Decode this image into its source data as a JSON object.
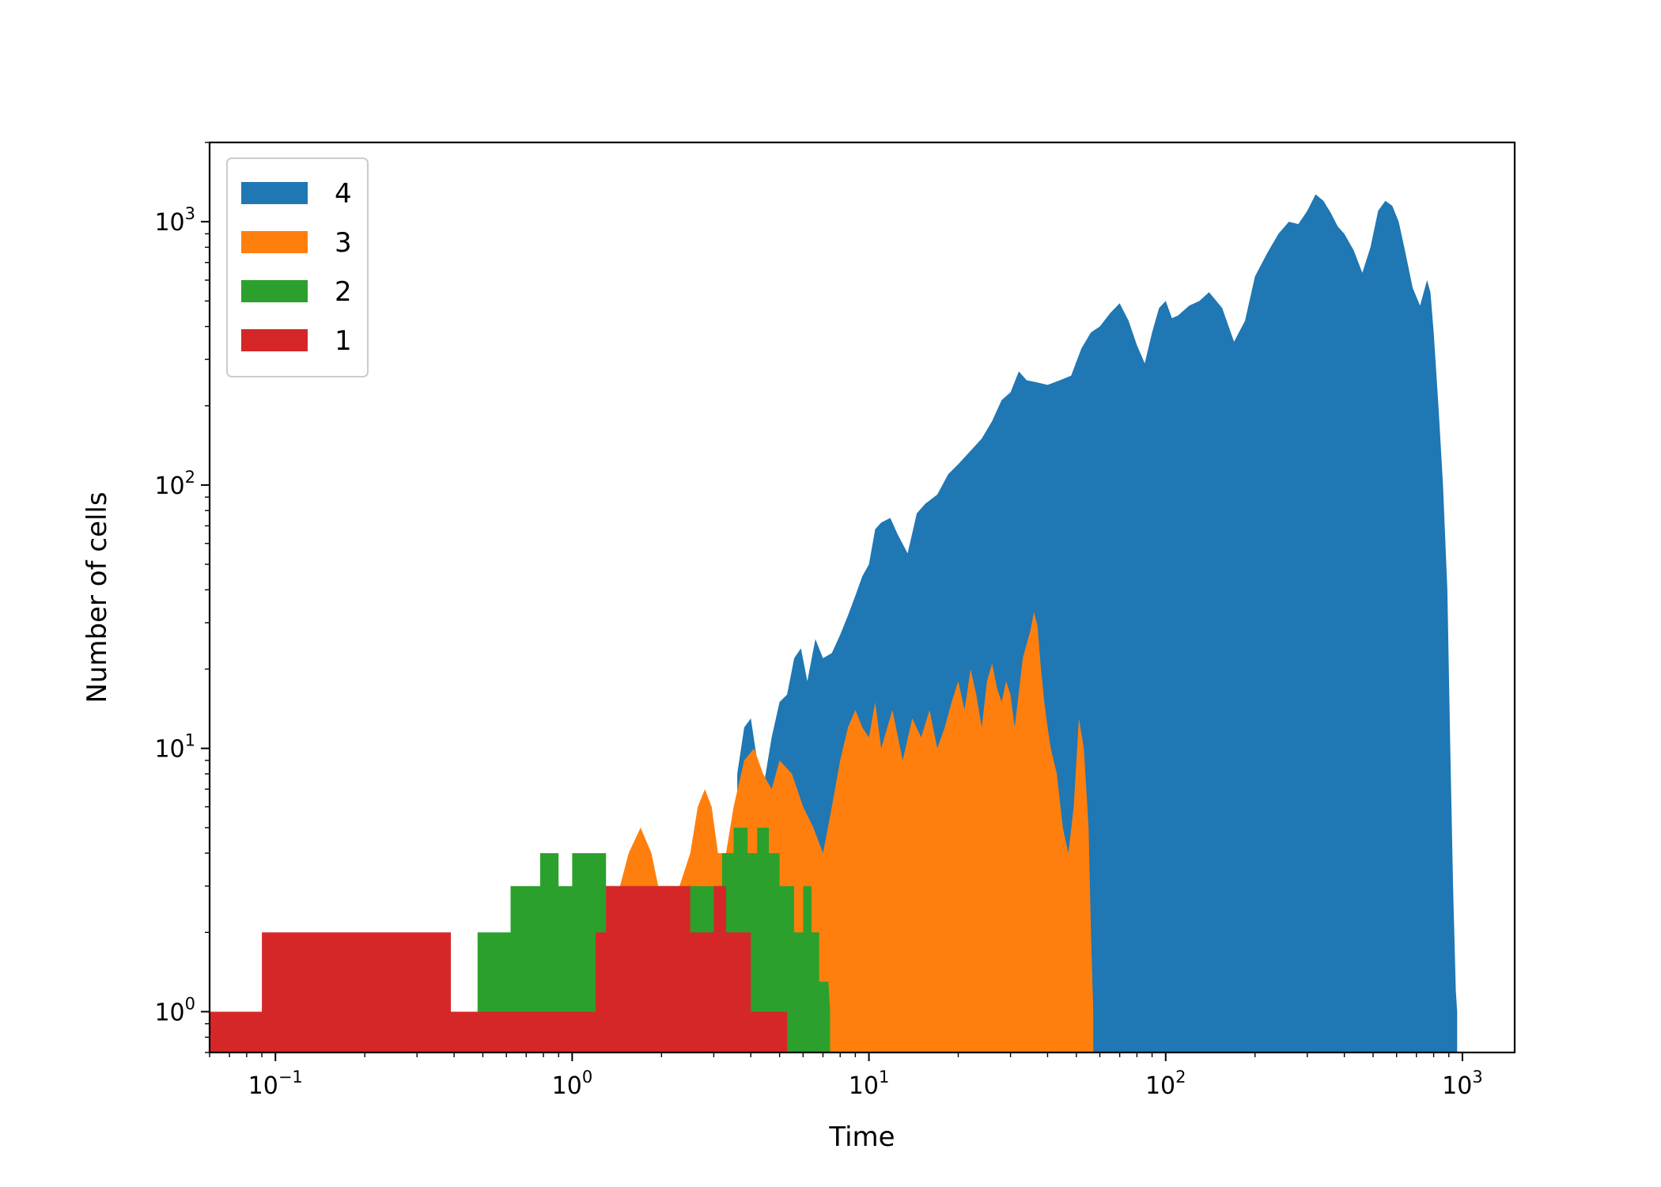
{
  "chart_data": {
    "type": "area",
    "xlabel": "Time",
    "ylabel": "Number of cells",
    "xscale": "log",
    "yscale": "log",
    "xlim": [
      0.06,
      1500
    ],
    "ylim": [
      0.7,
      2000
    ],
    "x_ticks": [
      {
        "value": 0.1,
        "base": "10",
        "exp": "−1"
      },
      {
        "value": 1,
        "base": "10",
        "exp": "0"
      },
      {
        "value": 10,
        "base": "10",
        "exp": "1"
      },
      {
        "value": 100,
        "base": "10",
        "exp": "2"
      },
      {
        "value": 1000,
        "base": "10",
        "exp": "3"
      }
    ],
    "y_ticks": [
      {
        "value": 1,
        "base": "10",
        "exp": "0"
      },
      {
        "value": 10,
        "base": "10",
        "exp": "1"
      },
      {
        "value": 100,
        "base": "10",
        "exp": "2"
      },
      {
        "value": 1000,
        "base": "10",
        "exp": "3"
      }
    ],
    "grid": false,
    "legend": {
      "position": "top-left",
      "entries": [
        "4",
        "3",
        "2",
        "1"
      ]
    },
    "series": [
      {
        "name": "4",
        "color": "#1f77b4",
        "points": [
          [
            3.6,
            1
          ],
          [
            3.6,
            8
          ],
          [
            3.8,
            12
          ],
          [
            4.0,
            13
          ],
          [
            4.2,
            9
          ],
          [
            4.4,
            7
          ],
          [
            4.7,
            11
          ],
          [
            5.0,
            15
          ],
          [
            5.3,
            16
          ],
          [
            5.6,
            22
          ],
          [
            5.9,
            24
          ],
          [
            6.2,
            18
          ],
          [
            6.6,
            26
          ],
          [
            7.0,
            22
          ],
          [
            7.5,
            23
          ],
          [
            8.0,
            27
          ],
          [
            8.5,
            32
          ],
          [
            9.0,
            38
          ],
          [
            9.5,
            45
          ],
          [
            10,
            50
          ],
          [
            10.5,
            68
          ],
          [
            11,
            72
          ],
          [
            11.8,
            75
          ],
          [
            12.5,
            65
          ],
          [
            13.5,
            55
          ],
          [
            14.5,
            78
          ],
          [
            15.5,
            85
          ],
          [
            17,
            92
          ],
          [
            18.5,
            110
          ],
          [
            20,
            120
          ],
          [
            22,
            135
          ],
          [
            24,
            150
          ],
          [
            26,
            175
          ],
          [
            28,
            210
          ],
          [
            30,
            225
          ],
          [
            32,
            270
          ],
          [
            34,
            250
          ],
          [
            37,
            245
          ],
          [
            40,
            240
          ],
          [
            44,
            250
          ],
          [
            48,
            260
          ],
          [
            52,
            330
          ],
          [
            56,
            380
          ],
          [
            60,
            400
          ],
          [
            65,
            450
          ],
          [
            70,
            490
          ],
          [
            75,
            420
          ],
          [
            80,
            340
          ],
          [
            85,
            290
          ],
          [
            90,
            380
          ],
          [
            95,
            470
          ],
          [
            100,
            500
          ],
          [
            105,
            430
          ],
          [
            110,
            440
          ],
          [
            120,
            480
          ],
          [
            130,
            500
          ],
          [
            140,
            540
          ],
          [
            155,
            470
          ],
          [
            170,
            350
          ],
          [
            185,
            420
          ],
          [
            200,
            620
          ],
          [
            220,
            760
          ],
          [
            240,
            900
          ],
          [
            260,
            1000
          ],
          [
            280,
            980
          ],
          [
            300,
            1100
          ],
          [
            320,
            1270
          ],
          [
            340,
            1200
          ],
          [
            360,
            1080
          ],
          [
            380,
            960
          ],
          [
            400,
            900
          ],
          [
            430,
            780
          ],
          [
            460,
            640
          ],
          [
            490,
            800
          ],
          [
            520,
            1100
          ],
          [
            550,
            1200
          ],
          [
            580,
            1150
          ],
          [
            610,
            1000
          ],
          [
            640,
            780
          ],
          [
            680,
            560
          ],
          [
            720,
            480
          ],
          [
            760,
            600
          ],
          [
            780,
            540
          ],
          [
            800,
            380
          ],
          [
            830,
            200
          ],
          [
            860,
            100
          ],
          [
            890,
            40
          ],
          [
            910,
            10
          ],
          [
            930,
            3
          ],
          [
            950,
            1.2
          ],
          [
            960,
            1
          ]
        ]
      },
      {
        "name": "3",
        "color": "#ff7f0e",
        "points": [
          [
            1.35,
            2
          ],
          [
            1.45,
            3
          ],
          [
            1.55,
            4
          ],
          [
            1.7,
            5
          ],
          [
            1.85,
            4
          ],
          [
            1.95,
            3
          ],
          [
            2.3,
            3
          ],
          [
            2.5,
            4
          ],
          [
            2.65,
            6
          ],
          [
            2.8,
            7
          ],
          [
            2.95,
            6
          ],
          [
            3.1,
            4
          ],
          [
            3.3,
            4
          ],
          [
            3.5,
            6
          ],
          [
            3.8,
            9
          ],
          [
            4.1,
            10
          ],
          [
            4.4,
            8
          ],
          [
            4.7,
            7
          ],
          [
            5.0,
            9
          ],
          [
            5.5,
            8
          ],
          [
            6.0,
            6
          ],
          [
            6.5,
            5
          ],
          [
            7.0,
            4
          ],
          [
            7.5,
            6
          ],
          [
            8.0,
            9
          ],
          [
            8.5,
            12
          ],
          [
            9.0,
            14
          ],
          [
            9.5,
            12
          ],
          [
            10,
            11
          ],
          [
            10.5,
            15
          ],
          [
            11,
            10
          ],
          [
            12,
            14
          ],
          [
            13,
            9
          ],
          [
            14,
            13
          ],
          [
            15,
            11
          ],
          [
            16,
            14
          ],
          [
            17,
            10
          ],
          [
            18,
            12
          ],
          [
            19,
            15
          ],
          [
            20,
            18
          ],
          [
            21,
            14
          ],
          [
            22,
            20
          ],
          [
            23,
            16
          ],
          [
            24,
            12
          ],
          [
            25,
            18
          ],
          [
            26,
            21
          ],
          [
            27,
            17
          ],
          [
            28,
            15
          ],
          [
            29,
            18
          ],
          [
            30,
            16
          ],
          [
            31,
            12
          ],
          [
            33,
            22
          ],
          [
            35,
            28
          ],
          [
            36,
            33
          ],
          [
            37,
            29
          ],
          [
            38,
            20
          ],
          [
            39,
            15
          ],
          [
            40,
            12
          ],
          [
            41,
            10
          ],
          [
            43,
            8
          ],
          [
            45,
            5
          ],
          [
            47,
            4
          ],
          [
            49,
            6
          ],
          [
            51,
            13
          ],
          [
            53,
            10
          ],
          [
            55,
            5
          ],
          [
            56,
            2
          ],
          [
            57,
            1
          ]
        ]
      },
      {
        "name": "2",
        "color": "#2ca02c",
        "points": [
          [
            0.48,
            1
          ],
          [
            0.48,
            2
          ],
          [
            0.62,
            2
          ],
          [
            0.62,
            3
          ],
          [
            0.78,
            3
          ],
          [
            0.78,
            4
          ],
          [
            0.9,
            4
          ],
          [
            0.9,
            3
          ],
          [
            1.0,
            3
          ],
          [
            1.0,
            4
          ],
          [
            1.3,
            4
          ],
          [
            1.3,
            3
          ],
          [
            3.2,
            3
          ],
          [
            3.2,
            4
          ],
          [
            3.5,
            4
          ],
          [
            3.5,
            5
          ],
          [
            3.9,
            5
          ],
          [
            3.9,
            4
          ],
          [
            4.2,
            4
          ],
          [
            4.2,
            5
          ],
          [
            4.6,
            5
          ],
          [
            4.6,
            4
          ],
          [
            5.0,
            4
          ],
          [
            5.0,
            3
          ],
          [
            5.6,
            3
          ],
          [
            5.6,
            2
          ],
          [
            6.0,
            2
          ],
          [
            6.0,
            3
          ],
          [
            6.4,
            3
          ],
          [
            6.4,
            2
          ],
          [
            6.8,
            2
          ],
          [
            6.8,
            1.3
          ],
          [
            7.3,
            1.3
          ],
          [
            7.4,
            1
          ]
        ]
      },
      {
        "name": "1",
        "color": "#d62728",
        "points": [
          [
            0.06,
            1
          ],
          [
            0.09,
            1
          ],
          [
            0.09,
            2
          ],
          [
            0.39,
            2
          ],
          [
            0.39,
            1
          ],
          [
            1.2,
            1
          ],
          [
            1.2,
            2
          ],
          [
            1.3,
            2
          ],
          [
            1.3,
            3
          ],
          [
            2.5,
            3
          ],
          [
            2.5,
            2
          ],
          [
            3.0,
            2
          ],
          [
            3.0,
            3
          ],
          [
            3.3,
            3
          ],
          [
            3.3,
            2
          ],
          [
            4.0,
            2
          ],
          [
            4.0,
            1
          ],
          [
            5.3,
            1
          ]
        ]
      }
    ]
  }
}
